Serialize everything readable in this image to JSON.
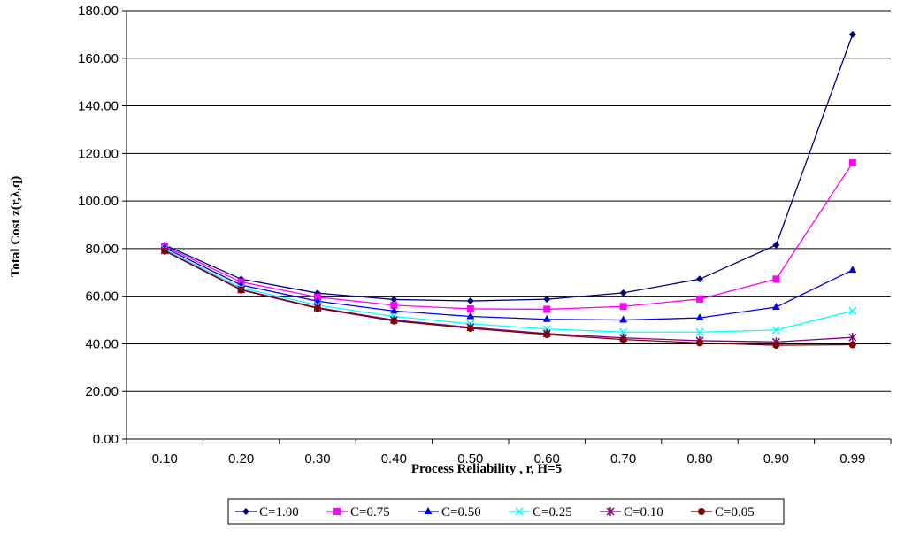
{
  "chart_data": {
    "type": "line",
    "title": "",
    "xlabel": "Process Reliability , r, H=5",
    "ylabel": "Total Cost z(r,λ,q)",
    "categories": [
      "0.10",
      "0.20",
      "0.30",
      "0.40",
      "0.50",
      "0.60",
      "0.70",
      "0.80",
      "0.90",
      "0.99"
    ],
    "ylim": [
      0,
      180
    ],
    "yticks": [
      "0.00",
      "20.00",
      "40.00",
      "60.00",
      "80.00",
      "100.00",
      "120.00",
      "140.00",
      "160.00",
      "180.00"
    ],
    "grid": "horizontal",
    "legend_position": "bottom",
    "series": [
      {
        "name": "C=1.00",
        "color": "#000080",
        "marker": "diamond",
        "values": [
          81.5,
          67.2,
          61.3,
          58.6,
          58.0,
          58.7,
          61.4,
          67.2,
          81.5,
          170.0
        ]
      },
      {
        "name": "C=0.75",
        "color": "#FF00FF",
        "marker": "square",
        "values": [
          80.9,
          66.0,
          59.6,
          56.2,
          54.7,
          54.5,
          55.7,
          58.8,
          67.2,
          116.0
        ]
      },
      {
        "name": "C=0.50",
        "color": "#0000FF",
        "marker": "triangle",
        "values": [
          80.3,
          64.7,
          57.9,
          53.8,
          51.5,
          50.3,
          50.0,
          50.9,
          55.4,
          71.0
        ]
      },
      {
        "name": "C=0.25",
        "color": "#00FFFF",
        "marker": "x",
        "values": [
          79.6,
          63.5,
          56.2,
          51.5,
          48.4,
          46.2,
          44.9,
          44.9,
          45.8,
          53.8
        ]
      },
      {
        "name": "C=0.10",
        "color": "#800080",
        "marker": "star",
        "values": [
          79.2,
          62.8,
          55.2,
          50.0,
          46.9,
          44.3,
          42.5,
          41.3,
          40.8,
          42.7
        ]
      },
      {
        "name": "C=0.05",
        "color": "#800000",
        "marker": "circle",
        "values": [
          79.0,
          62.6,
          54.9,
          49.6,
          46.5,
          43.9,
          41.8,
          40.4,
          39.4,
          39.6
        ]
      }
    ]
  }
}
